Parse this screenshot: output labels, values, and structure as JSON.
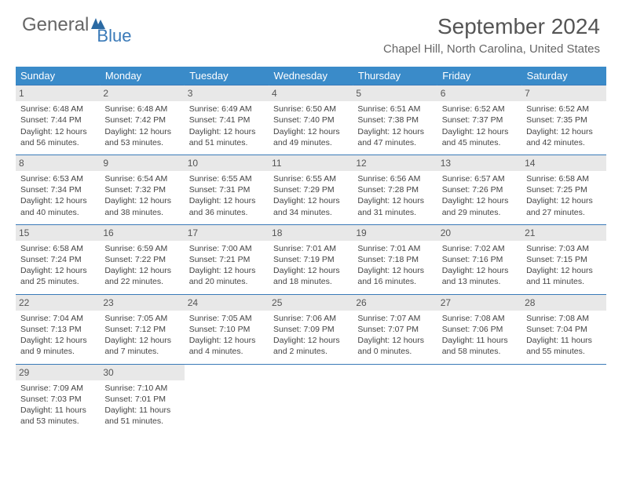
{
  "logo": {
    "text1": "General",
    "text2": "Blue"
  },
  "title": "September 2024",
  "location": "Chapel Hill, North Carolina, United States",
  "colors": {
    "header_bg": "#3a8bc9",
    "accent": "#3a7ab8",
    "day_shade": "#e8e8e8",
    "text": "#444444",
    "title_text": "#555555"
  },
  "day_headers": [
    "Sunday",
    "Monday",
    "Tuesday",
    "Wednesday",
    "Thursday",
    "Friday",
    "Saturday"
  ],
  "weeks": [
    [
      {
        "n": "1",
        "sr": "Sunrise: 6:48 AM",
        "ss": "Sunset: 7:44 PM",
        "d1": "Daylight: 12 hours",
        "d2": "and 56 minutes."
      },
      {
        "n": "2",
        "sr": "Sunrise: 6:48 AM",
        "ss": "Sunset: 7:42 PM",
        "d1": "Daylight: 12 hours",
        "d2": "and 53 minutes."
      },
      {
        "n": "3",
        "sr": "Sunrise: 6:49 AM",
        "ss": "Sunset: 7:41 PM",
        "d1": "Daylight: 12 hours",
        "d2": "and 51 minutes."
      },
      {
        "n": "4",
        "sr": "Sunrise: 6:50 AM",
        "ss": "Sunset: 7:40 PM",
        "d1": "Daylight: 12 hours",
        "d2": "and 49 minutes."
      },
      {
        "n": "5",
        "sr": "Sunrise: 6:51 AM",
        "ss": "Sunset: 7:38 PM",
        "d1": "Daylight: 12 hours",
        "d2": "and 47 minutes."
      },
      {
        "n": "6",
        "sr": "Sunrise: 6:52 AM",
        "ss": "Sunset: 7:37 PM",
        "d1": "Daylight: 12 hours",
        "d2": "and 45 minutes."
      },
      {
        "n": "7",
        "sr": "Sunrise: 6:52 AM",
        "ss": "Sunset: 7:35 PM",
        "d1": "Daylight: 12 hours",
        "d2": "and 42 minutes."
      }
    ],
    [
      {
        "n": "8",
        "sr": "Sunrise: 6:53 AM",
        "ss": "Sunset: 7:34 PM",
        "d1": "Daylight: 12 hours",
        "d2": "and 40 minutes."
      },
      {
        "n": "9",
        "sr": "Sunrise: 6:54 AM",
        "ss": "Sunset: 7:32 PM",
        "d1": "Daylight: 12 hours",
        "d2": "and 38 minutes."
      },
      {
        "n": "10",
        "sr": "Sunrise: 6:55 AM",
        "ss": "Sunset: 7:31 PM",
        "d1": "Daylight: 12 hours",
        "d2": "and 36 minutes."
      },
      {
        "n": "11",
        "sr": "Sunrise: 6:55 AM",
        "ss": "Sunset: 7:29 PM",
        "d1": "Daylight: 12 hours",
        "d2": "and 34 minutes."
      },
      {
        "n": "12",
        "sr": "Sunrise: 6:56 AM",
        "ss": "Sunset: 7:28 PM",
        "d1": "Daylight: 12 hours",
        "d2": "and 31 minutes."
      },
      {
        "n": "13",
        "sr": "Sunrise: 6:57 AM",
        "ss": "Sunset: 7:26 PM",
        "d1": "Daylight: 12 hours",
        "d2": "and 29 minutes."
      },
      {
        "n": "14",
        "sr": "Sunrise: 6:58 AM",
        "ss": "Sunset: 7:25 PM",
        "d1": "Daylight: 12 hours",
        "d2": "and 27 minutes."
      }
    ],
    [
      {
        "n": "15",
        "sr": "Sunrise: 6:58 AM",
        "ss": "Sunset: 7:24 PM",
        "d1": "Daylight: 12 hours",
        "d2": "and 25 minutes."
      },
      {
        "n": "16",
        "sr": "Sunrise: 6:59 AM",
        "ss": "Sunset: 7:22 PM",
        "d1": "Daylight: 12 hours",
        "d2": "and 22 minutes."
      },
      {
        "n": "17",
        "sr": "Sunrise: 7:00 AM",
        "ss": "Sunset: 7:21 PM",
        "d1": "Daylight: 12 hours",
        "d2": "and 20 minutes."
      },
      {
        "n": "18",
        "sr": "Sunrise: 7:01 AM",
        "ss": "Sunset: 7:19 PM",
        "d1": "Daylight: 12 hours",
        "d2": "and 18 minutes."
      },
      {
        "n": "19",
        "sr": "Sunrise: 7:01 AM",
        "ss": "Sunset: 7:18 PM",
        "d1": "Daylight: 12 hours",
        "d2": "and 16 minutes."
      },
      {
        "n": "20",
        "sr": "Sunrise: 7:02 AM",
        "ss": "Sunset: 7:16 PM",
        "d1": "Daylight: 12 hours",
        "d2": "and 13 minutes."
      },
      {
        "n": "21",
        "sr": "Sunrise: 7:03 AM",
        "ss": "Sunset: 7:15 PM",
        "d1": "Daylight: 12 hours",
        "d2": "and 11 minutes."
      }
    ],
    [
      {
        "n": "22",
        "sr": "Sunrise: 7:04 AM",
        "ss": "Sunset: 7:13 PM",
        "d1": "Daylight: 12 hours",
        "d2": "and 9 minutes."
      },
      {
        "n": "23",
        "sr": "Sunrise: 7:05 AM",
        "ss": "Sunset: 7:12 PM",
        "d1": "Daylight: 12 hours",
        "d2": "and 7 minutes."
      },
      {
        "n": "24",
        "sr": "Sunrise: 7:05 AM",
        "ss": "Sunset: 7:10 PM",
        "d1": "Daylight: 12 hours",
        "d2": "and 4 minutes."
      },
      {
        "n": "25",
        "sr": "Sunrise: 7:06 AM",
        "ss": "Sunset: 7:09 PM",
        "d1": "Daylight: 12 hours",
        "d2": "and 2 minutes."
      },
      {
        "n": "26",
        "sr": "Sunrise: 7:07 AM",
        "ss": "Sunset: 7:07 PM",
        "d1": "Daylight: 12 hours",
        "d2": "and 0 minutes."
      },
      {
        "n": "27",
        "sr": "Sunrise: 7:08 AM",
        "ss": "Sunset: 7:06 PM",
        "d1": "Daylight: 11 hours",
        "d2": "and 58 minutes."
      },
      {
        "n": "28",
        "sr": "Sunrise: 7:08 AM",
        "ss": "Sunset: 7:04 PM",
        "d1": "Daylight: 11 hours",
        "d2": "and 55 minutes."
      }
    ],
    [
      {
        "n": "29",
        "sr": "Sunrise: 7:09 AM",
        "ss": "Sunset: 7:03 PM",
        "d1": "Daylight: 11 hours",
        "d2": "and 53 minutes."
      },
      {
        "n": "30",
        "sr": "Sunrise: 7:10 AM",
        "ss": "Sunset: 7:01 PM",
        "d1": "Daylight: 11 hours",
        "d2": "and 51 minutes."
      },
      null,
      null,
      null,
      null,
      null
    ]
  ]
}
